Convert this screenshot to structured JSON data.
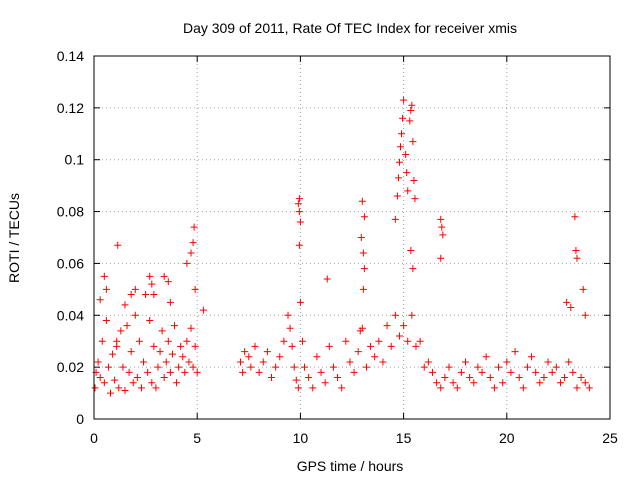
{
  "chart_data": {
    "type": "scatter",
    "title": "Day 309 of 2011, Rate Of TEC Index for receiver xmis",
    "xlabel": "GPS time / hours",
    "ylabel": "ROTI / TECUs",
    "xlim": [
      0,
      25
    ],
    "ylim": [
      0,
      0.14
    ],
    "x_ticks": [
      0,
      5,
      10,
      15,
      20,
      25
    ],
    "y_ticks": [
      0,
      0.02,
      0.04,
      0.06,
      0.08,
      0.1,
      0.12,
      0.14
    ],
    "x_tick_labels": [
      "0",
      "5",
      "10",
      "15",
      "20",
      "25"
    ],
    "y_tick_labels": [
      "0",
      "0.02",
      "0.04",
      "0.06",
      "0.08",
      "0.1",
      "0.12",
      "0.14"
    ],
    "grid": true,
    "marker": "+",
    "color": "#ff0000",
    "series": [
      {
        "x": [
          0.05,
          0.1,
          0.2,
          0.3,
          0.4,
          0.5,
          0.6,
          0.7,
          0.8,
          0.9,
          1.0,
          1.1,
          1.2,
          1.3,
          1.4,
          1.5,
          1.6,
          1.7,
          1.8,
          1.9,
          2.0,
          2.1,
          2.2,
          2.3,
          2.4,
          2.5,
          2.6,
          2.7,
          2.8,
          2.9,
          3.0,
          3.1,
          3.2,
          3.3,
          3.4,
          3.5,
          3.6,
          3.7,
          3.8,
          3.9,
          4.0,
          4.1,
          4.2,
          4.3,
          4.4,
          4.5,
          4.6,
          4.7,
          4.8,
          4.9,
          5.0,
          5.3,
          0.3,
          0.5,
          0.6,
          1.1,
          1.5,
          1.8,
          2.0,
          2.7,
          2.9,
          3.6,
          3.7,
          4.5,
          4.7,
          4.8,
          4.85,
          4.9,
          1.15,
          2.8,
          3.4,
          7.1,
          7.2,
          7.3,
          7.5,
          7.6,
          7.8,
          8.0,
          8.2,
          8.4,
          8.6,
          8.8,
          9.0,
          9.2,
          9.4,
          9.5,
          9.6,
          9.7,
          9.8,
          9.9,
          10.0,
          10.1,
          10.2,
          10.4,
          10.6,
          10.8,
          11.0,
          11.2,
          11.4,
          11.6,
          11.8,
          12.0,
          12.2,
          12.4,
          12.6,
          12.8,
          13.0,
          13.2,
          13.4,
          13.6,
          13.8,
          14.0,
          14.2,
          14.4,
          14.6,
          14.8,
          15.0,
          15.2,
          15.4,
          15.6,
          15.8,
          16.0,
          16.2,
          16.4,
          16.6,
          16.8,
          17.0,
          17.2,
          17.4,
          17.6,
          17.8,
          18.0,
          18.2,
          18.4,
          18.6,
          18.8,
          19.0,
          19.2,
          19.4,
          19.6,
          19.8,
          20.0,
          20.2,
          20.4,
          20.6,
          20.8,
          21.0,
          21.2,
          21.4,
          21.6,
          21.8,
          22.0,
          22.2,
          22.4,
          22.6,
          22.8,
          23.0,
          23.2,
          23.4,
          23.6,
          23.8,
          24.0,
          9.95,
          9.9,
          9.95,
          10.0,
          9.95,
          11.3,
          12.9,
          13.0,
          13.1,
          12.95,
          13.05,
          13.1,
          13.05,
          14.6,
          14.7,
          14.75,
          14.8,
          14.85,
          14.9,
          14.95,
          15.0,
          15.1,
          15.15,
          15.2,
          15.3,
          15.35,
          15.4,
          15.45,
          15.5,
          15.55,
          15.35,
          15.45,
          16.8,
          16.85,
          16.9,
          16.8,
          22.9,
          23.1,
          23.3,
          23.35,
          23.4,
          23.7,
          23.8
        ],
        "values": [
          0.012,
          0.018,
          0.022,
          0.016,
          0.03,
          0.014,
          0.038,
          0.02,
          0.01,
          0.025,
          0.015,
          0.028,
          0.012,
          0.034,
          0.02,
          0.011,
          0.036,
          0.018,
          0.026,
          0.014,
          0.04,
          0.016,
          0.03,
          0.012,
          0.022,
          0.048,
          0.018,
          0.038,
          0.014,
          0.028,
          0.012,
          0.02,
          0.026,
          0.034,
          0.016,
          0.022,
          0.03,
          0.018,
          0.025,
          0.036,
          0.014,
          0.02,
          0.028,
          0.024,
          0.018,
          0.03,
          0.022,
          0.035,
          0.02,
          0.028,
          0.018,
          0.042,
          0.046,
          0.055,
          0.05,
          0.03,
          0.044,
          0.048,
          0.05,
          0.055,
          0.048,
          0.053,
          0.045,
          0.06,
          0.064,
          0.068,
          0.074,
          0.05,
          0.067,
          0.052,
          0.055,
          0.022,
          0.018,
          0.026,
          0.024,
          0.02,
          0.028,
          0.018,
          0.022,
          0.026,
          0.016,
          0.02,
          0.024,
          0.03,
          0.04,
          0.035,
          0.028,
          0.02,
          0.015,
          0.012,
          0.045,
          0.03,
          0.02,
          0.016,
          0.012,
          0.024,
          0.018,
          0.014,
          0.028,
          0.02,
          0.016,
          0.012,
          0.03,
          0.022,
          0.018,
          0.026,
          0.035,
          0.02,
          0.028,
          0.024,
          0.03,
          0.022,
          0.036,
          0.028,
          0.04,
          0.032,
          0.036,
          0.03,
          0.04,
          0.028,
          0.03,
          0.02,
          0.022,
          0.018,
          0.014,
          0.012,
          0.016,
          0.02,
          0.014,
          0.012,
          0.018,
          0.022,
          0.016,
          0.014,
          0.02,
          0.018,
          0.024,
          0.016,
          0.012,
          0.02,
          0.014,
          0.022,
          0.018,
          0.026,
          0.016,
          0.012,
          0.02,
          0.024,
          0.018,
          0.014,
          0.016,
          0.022,
          0.018,
          0.02,
          0.014,
          0.016,
          0.022,
          0.018,
          0.012,
          0.016,
          0.014,
          0.012,
          0.085,
          0.083,
          0.08,
          0.076,
          0.067,
          0.054,
          0.034,
          0.084,
          0.078,
          0.07,
          0.064,
          0.058,
          0.05,
          0.077,
          0.086,
          0.093,
          0.099,
          0.105,
          0.11,
          0.116,
          0.123,
          0.102,
          0.095,
          0.088,
          0.115,
          0.119,
          0.121,
          0.107,
          0.092,
          0.085,
          0.065,
          0.058,
          0.077,
          0.074,
          0.071,
          0.062,
          0.045,
          0.043,
          0.078,
          0.065,
          0.062,
          0.05,
          0.04
        ]
      }
    ]
  }
}
